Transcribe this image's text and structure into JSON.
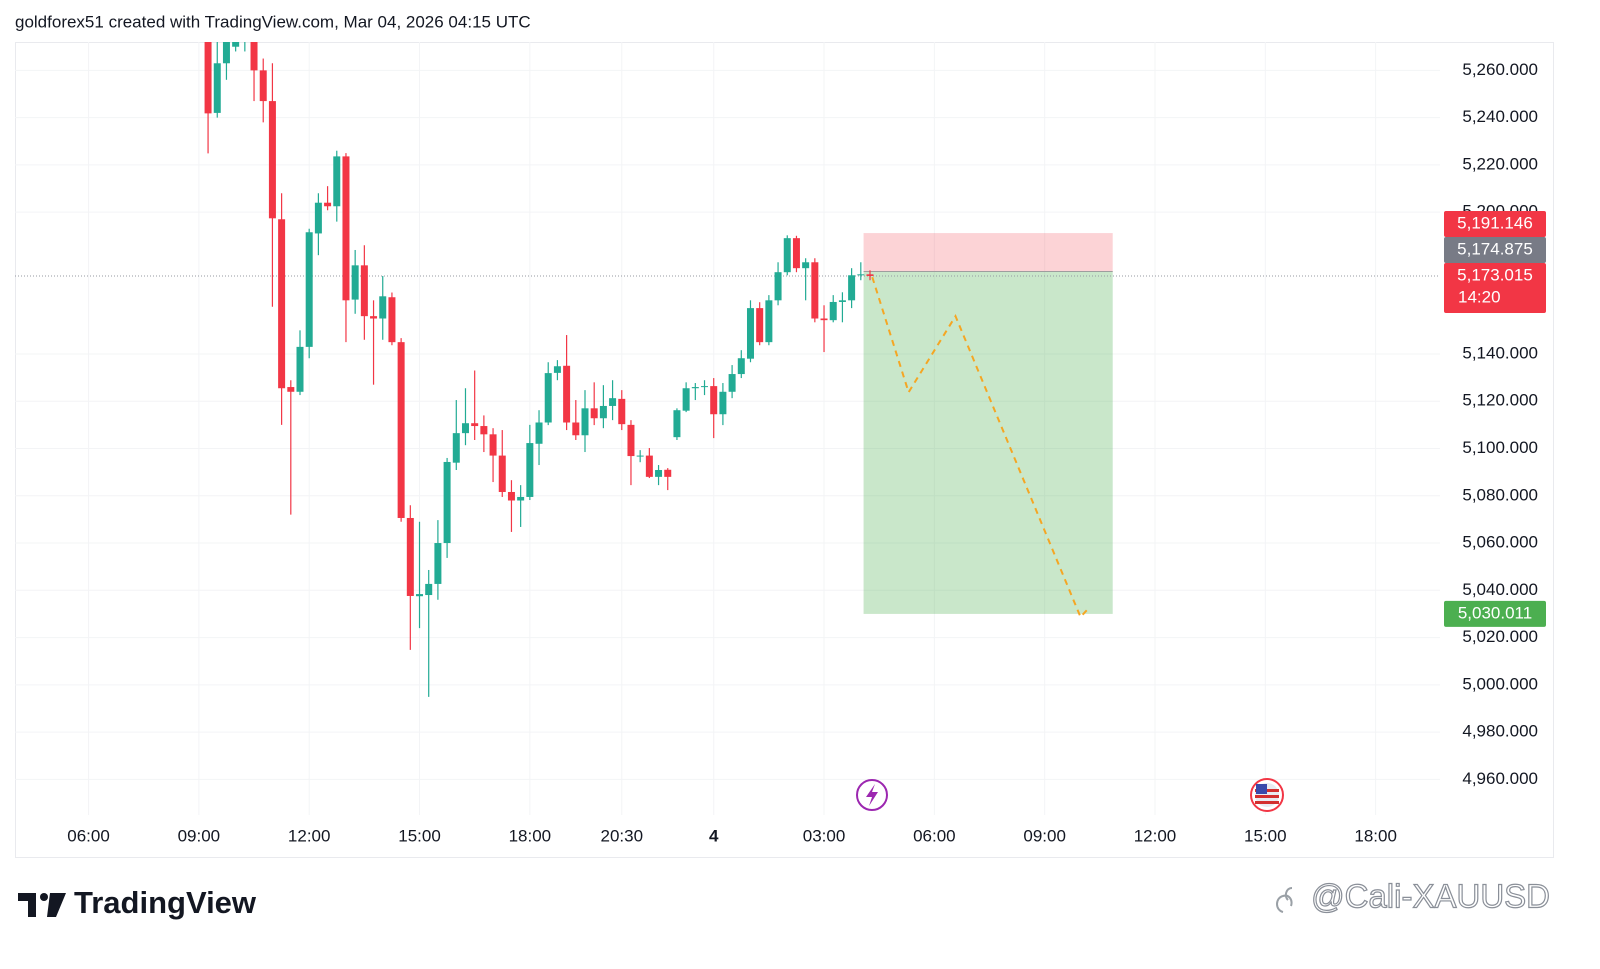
{
  "header": "goldforex51 created with TradingView.com, Mar 04, 2026 04:15 UTC",
  "brand": "TradingView",
  "watermark": "@Cali-XAUUSD",
  "chart_data": {
    "type": "candlestick",
    "up_color": "#22ab94",
    "down_color": "#f23645",
    "grid": true,
    "xlim": [
      -21,
      134
    ],
    "xticks": [
      {
        "value": -13,
        "label": "06:00"
      },
      {
        "value": -1,
        "label": "09:00"
      },
      {
        "value": 11,
        "label": "12:00"
      },
      {
        "value": 23,
        "label": "15:00"
      },
      {
        "value": 35,
        "label": "18:00"
      },
      {
        "value": 45,
        "label": "20:30"
      },
      {
        "value": 55,
        "label": "4"
      },
      {
        "value": 67,
        "label": "03:00"
      },
      {
        "value": 79,
        "label": "06:00"
      },
      {
        "value": 91,
        "label": "09:00"
      },
      {
        "value": 103,
        "label": "12:00"
      },
      {
        "value": 115,
        "label": "15:00"
      },
      {
        "value": 127,
        "label": "18:00"
      }
    ],
    "ylim": [
      4928,
      5272
    ],
    "yticks": [
      {
        "value": 4960,
        "label": "4,960.000"
      },
      {
        "value": 4980,
        "label": "4,980.000"
      },
      {
        "value": 5000,
        "label": "5,000.000"
      },
      {
        "value": 5020,
        "label": "5,020.000"
      },
      {
        "value": 5040,
        "label": "5,040.000"
      },
      {
        "value": 5060,
        "label": "5,060.000"
      },
      {
        "value": 5080,
        "label": "5,080.000"
      },
      {
        "value": 5100,
        "label": "5,100.000"
      },
      {
        "value": 5120,
        "label": "5,120.000"
      },
      {
        "value": 5140,
        "label": "5,140.000"
      },
      {
        "value": 5200,
        "label": "5,200.000"
      },
      {
        "value": 5220,
        "label": "5,220.000"
      },
      {
        "value": 5240,
        "label": "5,240.000"
      },
      {
        "value": 5260,
        "label": "5,260.000"
      }
    ],
    "open": [
      5275,
      5242,
      5263,
      5270,
      5272,
      5275,
      5260,
      5247,
      5197,
      5126,
      5124,
      5143,
      5191,
      5204,
      5202.5,
      5223.6,
      5163,
      5177.5,
      5156,
      5155,
      5164,
      5145,
      5070.6,
      5037.5,
      5038,
      5042.7,
      5060,
      5094,
      5106.5,
      5110.7,
      5109.5,
      5106,
      5097,
      5081.6,
      5078,
      5079.5,
      5102,
      5111,
      5132,
      5135,
      5111,
      5105.6,
      5117,
      5112.8,
      5118,
      5121,
      5110,
      5096.8,
      5097,
      5088,
      5091,
      5104.8,
      5116,
      5125.5,
      5126,
      5126.4,
      5114.5,
      5124,
      5131.5,
      5138,
      5159.4,
      5145,
      5162.7,
      5174.6,
      5189,
      5176.3,
      5178.8,
      5155,
      5154.3,
      5162,
      5162.7,
      5173.3,
      5173.7
    ],
    "high": [
      5280,
      5272,
      5278,
      5280,
      5280,
      5278,
      5265,
      5263,
      5208,
      5128.9,
      5150,
      5193,
      5208,
      5211,
      5226,
      5225,
      5184,
      5186,
      5162.7,
      5173,
      5166,
      5146.7,
      5076,
      5069,
      5048.6,
      5069.7,
      5096,
      5120.5,
      5125.5,
      5133,
      5114,
      5108.6,
      5107.8,
      5086.6,
      5084.5,
      5110,
      5116.2,
      5136.5,
      5137.4,
      5148,
      5120.5,
      5124.7,
      5128,
      5126.8,
      5128.9,
      5124.7,
      5112,
      5099.3,
      5100.2,
      5093,
      5091.7,
      5117,
      5128,
      5127.7,
      5128.9,
      5129.8,
      5127.7,
      5135.3,
      5141.6,
      5162.7,
      5161.9,
      5164.9,
      5178.8,
      5190.2,
      5190,
      5180.5,
      5180.5,
      5160.6,
      5164.9,
      5166.1,
      5176.3,
      5178.8,
      5175.4
    ],
    "low": [
      5224.9,
      5240,
      5256,
      5268,
      5268,
      5247,
      5238,
      5160,
      5110,
      5072,
      5122.6,
      5138.2,
      5181.8,
      5200.8,
      5196,
      5145,
      5157,
      5146,
      5127,
      5146,
      5143.7,
      5069,
      5014.8,
      5024,
      4994.9,
      5036,
      5053.7,
      5090.9,
      5101.4,
      5103.6,
      5098.5,
      5085.8,
      5079.5,
      5064.7,
      5066.8,
      5078.2,
      5093,
      5109.9,
      5128.9,
      5107.8,
      5103.6,
      5098.5,
      5109.9,
      5108.6,
      5112,
      5107.8,
      5084.5,
      5094.2,
      5087.5,
      5084.5,
      5082.4,
      5103.6,
      5115.4,
      5120.5,
      5122.6,
      5104.4,
      5109.9,
      5121.3,
      5129.8,
      5136.5,
      5143.7,
      5143.7,
      5160.6,
      5173.3,
      5174.6,
      5162.7,
      5153.4,
      5140.8,
      5153.4,
      5153.4,
      5159.4,
      5171.2,
      5171.2
    ],
    "close": [
      5241.8,
      5263,
      5272,
      5273,
      5274,
      5260,
      5247,
      5197.4,
      5125.5,
      5124,
      5143,
      5191.5,
      5204,
      5202.5,
      5223.6,
      5162.7,
      5177.5,
      5156,
      5155,
      5164.4,
      5145,
      5070.6,
      5037.6,
      5038.4,
      5042.7,
      5060,
      5094.3,
      5106.5,
      5110.7,
      5109.5,
      5106,
      5097,
      5081.6,
      5078,
      5079.5,
      5102.3,
      5111,
      5131.9,
      5134.8,
      5111,
      5105.6,
      5117,
      5112.8,
      5118,
      5121.3,
      5110.3,
      5096.8,
      5097,
      5088,
      5090.9,
      5088,
      5116.2,
      5125.5,
      5126,
      5126.4,
      5114.5,
      5124,
      5131.5,
      5138.2,
      5159.4,
      5145,
      5162.7,
      5174.6,
      5189,
      5176.3,
      5178.8,
      5155,
      5154.3,
      5162,
      5162.7,
      5173.3,
      5173.7,
      5173.0
    ],
    "position": {
      "x": [
        71.3,
        98.4
      ],
      "stop": {
        "value": 5191.146,
        "label": "5,191.146",
        "color": "#f23645"
      },
      "entry": {
        "value": 5174.875,
        "label": "5,174.875",
        "color": "#787b86"
      },
      "target": {
        "value": 5030.011,
        "label": "5,030.011",
        "color": "#4caf50"
      }
    },
    "last_price": {
      "value": 5173.015,
      "label": "5,173.015",
      "countdown": "14:20",
      "color": "#f23645"
    },
    "projection": {
      "x": [
        72.25,
        76.2,
        81.3,
        94.9,
        95.8
      ],
      "values": [
        5172.5,
        5123.8,
        5156,
        5028.7,
        5032.5
      ],
      "color": "#f5a623"
    }
  }
}
